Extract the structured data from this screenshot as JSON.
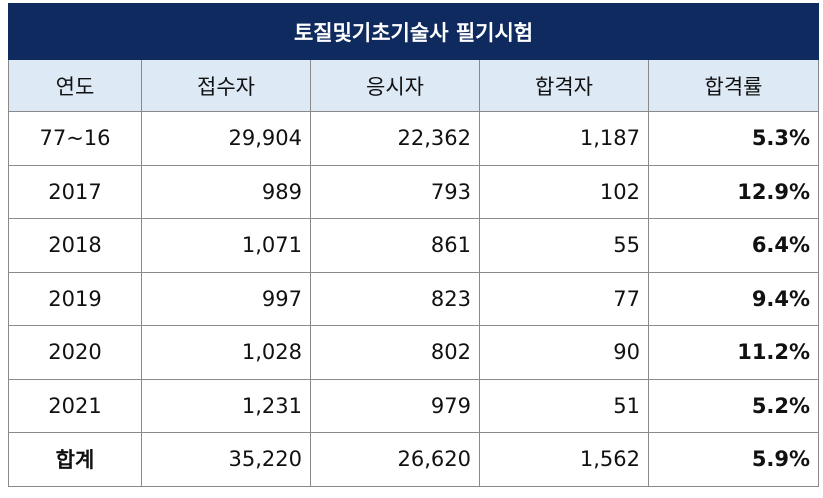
{
  "table": {
    "title": "토질및기초기술사 필기시험",
    "headers": [
      "연도",
      "접수자",
      "응시자",
      "합격자",
      "합격률"
    ],
    "rows": [
      {
        "year": "77~16",
        "applicants": "29,904",
        "examinees": "22,362",
        "passers": "1,187",
        "rate": "5.3%"
      },
      {
        "year": "2017",
        "applicants": "989",
        "examinees": "793",
        "passers": "102",
        "rate": "12.9%"
      },
      {
        "year": "2018",
        "applicants": "1,071",
        "examinees": "861",
        "passers": "55",
        "rate": "6.4%"
      },
      {
        "year": "2019",
        "applicants": "997",
        "examinees": "823",
        "passers": "77",
        "rate": "9.4%"
      },
      {
        "year": "2020",
        "applicants": "1,028",
        "examinees": "802",
        "passers": "90",
        "rate": "11.2%"
      },
      {
        "year": "2021",
        "applicants": "1,231",
        "examinees": "979",
        "passers": "51",
        "rate": "5.2%"
      }
    ],
    "total": {
      "label": "합계",
      "applicants": "35,220",
      "examinees": "26,620",
      "passers": "1,562",
      "rate": "5.9%"
    },
    "colors": {
      "title_bg": "#0f2a5f",
      "title_text": "#ffffff",
      "header_bg": "#ddeaf6",
      "border": "#8a8a8a"
    }
  },
  "chart_data": {
    "type": "table",
    "title": "토질및기초기술사 필기시험",
    "columns": [
      "연도",
      "접수자",
      "응시자",
      "합격자",
      "합격률"
    ],
    "rows": [
      [
        "77~16",
        29904,
        22362,
        1187,
        "5.3%"
      ],
      [
        "2017",
        989,
        793,
        102,
        "12.9%"
      ],
      [
        "2018",
        1071,
        861,
        55,
        "6.4%"
      ],
      [
        "2019",
        997,
        823,
        77,
        "9.4%"
      ],
      [
        "2020",
        1028,
        802,
        90,
        "11.2%"
      ],
      [
        "2021",
        1231,
        979,
        51,
        "5.2%"
      ],
      [
        "합계",
        35220,
        26620,
        1562,
        "5.9%"
      ]
    ]
  }
}
